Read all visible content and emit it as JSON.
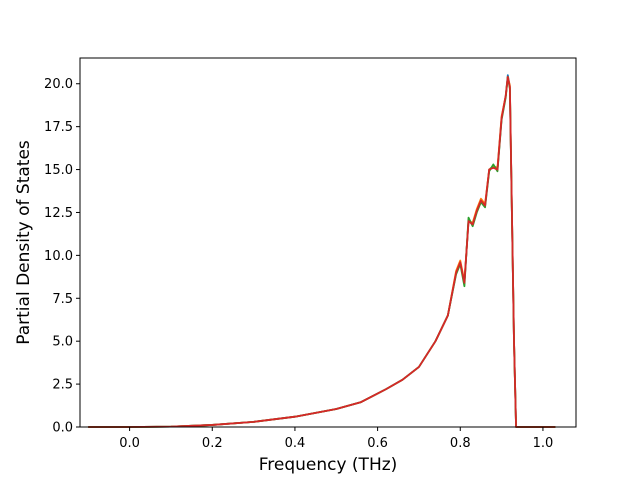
{
  "chart_data": {
    "type": "line",
    "xlabel": "Frequency (THz)",
    "ylabel": "Partial Density of States",
    "xlim": [
      -0.12,
      1.08
    ],
    "ylim": [
      0,
      21.5
    ],
    "xticks": [
      "0.0",
      "0.2",
      "0.4",
      "0.6",
      "0.8",
      "1.0"
    ],
    "yticks": [
      "0.0",
      "2.5",
      "5.0",
      "7.5",
      "10.0",
      "12.5",
      "15.0",
      "17.5",
      "20.0"
    ],
    "grid": false,
    "legend": "none",
    "series": [
      {
        "color": "#1f77b4",
        "x": [
          -0.1,
          0.0,
          0.1,
          0.2,
          0.3,
          0.4,
          0.5,
          0.56,
          0.62,
          0.66,
          0.7,
          0.74,
          0.77,
          0.79,
          0.8,
          0.81,
          0.82,
          0.83,
          0.84,
          0.85,
          0.86,
          0.87,
          0.88,
          0.89,
          0.9,
          0.91,
          0.915,
          0.92,
          0.93,
          0.935,
          0.94,
          0.95,
          1.03
        ],
        "y": [
          0.0,
          0.0,
          0.02,
          0.12,
          0.3,
          0.6,
          1.05,
          1.45,
          2.2,
          2.75,
          3.5,
          5.0,
          6.5,
          9.0,
          9.6,
          8.4,
          12.0,
          11.8,
          12.6,
          13.2,
          12.9,
          15.0,
          15.2,
          15.0,
          18.0,
          19.3,
          20.5,
          19.8,
          5.0,
          0.0,
          0.0,
          0.0,
          0.0
        ]
      },
      {
        "color": "#ff7f0e",
        "x": [
          -0.1,
          0.0,
          0.1,
          0.2,
          0.3,
          0.4,
          0.5,
          0.56,
          0.62,
          0.66,
          0.7,
          0.74,
          0.77,
          0.79,
          0.8,
          0.81,
          0.82,
          0.83,
          0.84,
          0.85,
          0.86,
          0.87,
          0.88,
          0.89,
          0.9,
          0.91,
          0.915,
          0.92,
          0.93,
          0.935,
          0.94,
          0.95,
          1.03
        ],
        "y": [
          0.0,
          0.0,
          0.02,
          0.12,
          0.3,
          0.6,
          1.05,
          1.45,
          2.2,
          2.75,
          3.5,
          5.0,
          6.5,
          9.1,
          9.7,
          8.5,
          12.0,
          11.9,
          12.7,
          13.3,
          13.0,
          15.0,
          15.2,
          15.1,
          18.1,
          19.3,
          20.4,
          19.9,
          5.0,
          0.0,
          0.0,
          0.0,
          0.0
        ]
      },
      {
        "color": "#2ca02c",
        "x": [
          -0.1,
          0.0,
          0.1,
          0.2,
          0.3,
          0.4,
          0.5,
          0.56,
          0.62,
          0.66,
          0.7,
          0.74,
          0.77,
          0.79,
          0.8,
          0.81,
          0.82,
          0.83,
          0.84,
          0.85,
          0.86,
          0.87,
          0.88,
          0.89,
          0.9,
          0.91,
          0.915,
          0.92,
          0.93,
          0.935,
          0.94,
          0.95,
          1.03
        ],
        "y": [
          0.0,
          0.0,
          0.02,
          0.12,
          0.3,
          0.6,
          1.05,
          1.45,
          2.2,
          2.75,
          3.5,
          5.0,
          6.5,
          8.9,
          9.5,
          8.2,
          12.2,
          11.7,
          12.5,
          13.1,
          12.8,
          14.9,
          15.3,
          14.9,
          17.9,
          19.2,
          20.4,
          19.7,
          5.0,
          0.0,
          0.0,
          0.0,
          0.0
        ]
      },
      {
        "color": "#d62728",
        "x": [
          -0.1,
          0.0,
          0.1,
          0.2,
          0.3,
          0.4,
          0.5,
          0.56,
          0.62,
          0.66,
          0.7,
          0.74,
          0.77,
          0.79,
          0.8,
          0.81,
          0.82,
          0.83,
          0.84,
          0.85,
          0.86,
          0.87,
          0.88,
          0.89,
          0.9,
          0.91,
          0.915,
          0.92,
          0.93,
          0.935,
          0.94,
          0.95,
          1.03
        ],
        "y": [
          0.0,
          0.0,
          0.02,
          0.12,
          0.3,
          0.6,
          1.05,
          1.45,
          2.2,
          2.75,
          3.5,
          5.0,
          6.5,
          9.0,
          9.6,
          8.4,
          12.0,
          11.8,
          12.6,
          13.2,
          12.9,
          15.0,
          15.1,
          15.0,
          18.0,
          19.3,
          20.4,
          19.8,
          5.0,
          0.0,
          0.0,
          0.0,
          0.0
        ]
      }
    ]
  }
}
